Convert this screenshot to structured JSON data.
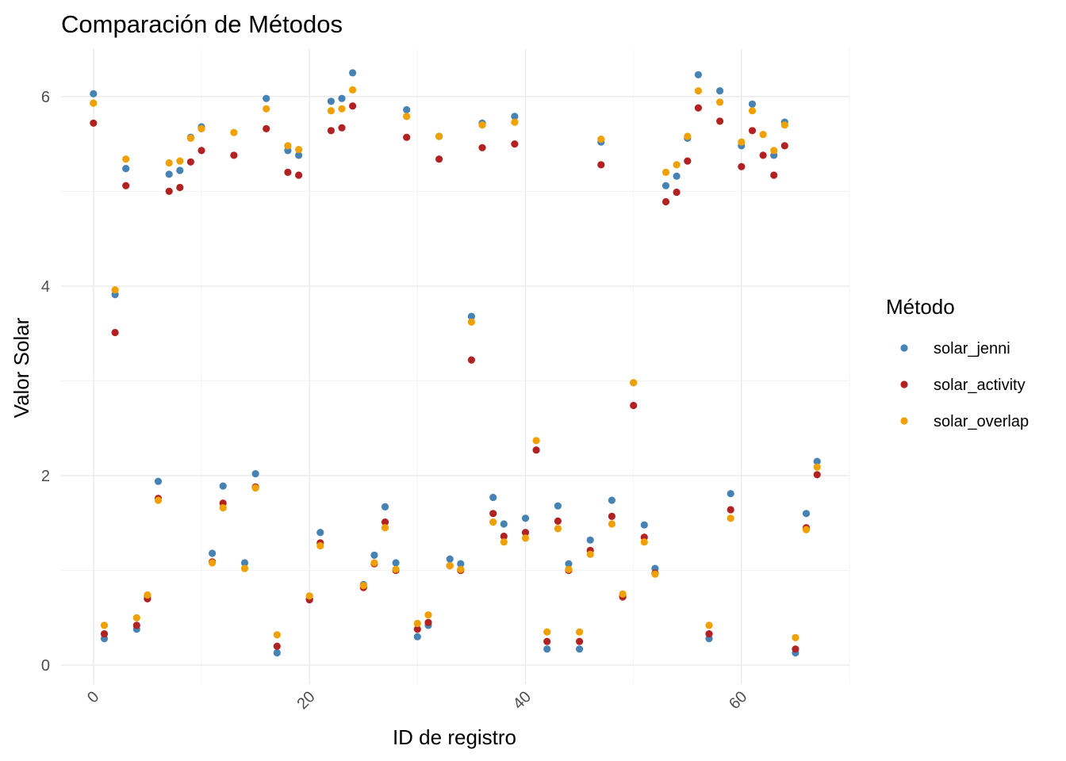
{
  "chart_data": {
    "type": "scatter",
    "title": "Comparación de Métodos",
    "xlabel": "ID de registro",
    "ylabel": "Valor Solar",
    "xlim": [
      -3,
      70
    ],
    "ylim": [
      -0.2,
      6.5
    ],
    "xticks": [
      0,
      20,
      40,
      60
    ],
    "yticks": [
      0,
      2,
      4,
      6
    ],
    "grid": true,
    "legend": {
      "title": "Método",
      "position": "right"
    },
    "colors": {
      "solar_jenni": "#4682b4",
      "solar_activity": "#b22222",
      "solar_overlap": "#f0a000"
    },
    "series": [
      {
        "name": "solar_jenni",
        "points": [
          [
            0,
            6.03
          ],
          [
            1,
            0.28
          ],
          [
            2,
            3.91
          ],
          [
            3,
            5.24
          ],
          [
            4,
            0.38
          ],
          [
            5,
            0.72
          ],
          [
            6,
            1.94
          ],
          [
            7,
            5.18
          ],
          [
            8,
            5.22
          ],
          [
            9,
            5.57
          ],
          [
            10,
            5.68
          ],
          [
            11,
            1.18
          ],
          [
            12,
            1.89
          ],
          [
            14,
            1.08
          ],
          [
            15,
            2.02
          ],
          [
            16,
            5.98
          ],
          [
            17,
            0.13
          ],
          [
            18,
            5.43
          ],
          [
            19,
            5.38
          ],
          [
            20,
            0.7
          ],
          [
            21,
            1.4
          ],
          [
            22,
            5.95
          ],
          [
            23,
            5.98
          ],
          [
            24,
            6.25
          ],
          [
            25,
            0.85
          ],
          [
            26,
            1.16
          ],
          [
            27,
            1.67
          ],
          [
            28,
            1.08
          ],
          [
            29,
            5.86
          ],
          [
            30,
            0.3
          ],
          [
            31,
            0.42
          ],
          [
            32,
            5.58
          ],
          [
            33,
            1.12
          ],
          [
            34,
            1.07
          ],
          [
            35,
            3.68
          ],
          [
            36,
            5.72
          ],
          [
            37,
            1.77
          ],
          [
            38,
            1.49
          ],
          [
            39,
            5.79
          ],
          [
            40,
            1.55
          ],
          [
            42,
            0.17
          ],
          [
            43,
            1.68
          ],
          [
            44,
            1.07
          ],
          [
            45,
            0.17
          ],
          [
            46,
            1.32
          ],
          [
            47,
            5.52
          ],
          [
            48,
            1.74
          ],
          [
            49,
            0.73
          ],
          [
            50,
            2.98
          ],
          [
            51,
            1.48
          ],
          [
            52,
            1.02
          ],
          [
            53,
            5.06
          ],
          [
            54,
            5.16
          ],
          [
            55,
            5.56
          ],
          [
            56,
            6.23
          ],
          [
            57,
            0.28
          ],
          [
            58,
            6.06
          ],
          [
            59,
            1.81
          ],
          [
            60,
            5.48
          ],
          [
            61,
            5.92
          ],
          [
            63,
            5.38
          ],
          [
            64,
            5.73
          ],
          [
            65,
            0.13
          ],
          [
            66,
            1.6
          ],
          [
            67,
            2.15
          ]
        ]
      },
      {
        "name": "solar_activity",
        "points": [
          [
            0,
            5.72
          ],
          [
            1,
            0.33
          ],
          [
            2,
            3.51
          ],
          [
            3,
            5.06
          ],
          [
            4,
            0.42
          ],
          [
            5,
            0.7
          ],
          [
            6,
            1.76
          ],
          [
            7,
            5.0
          ],
          [
            8,
            5.04
          ],
          [
            9,
            5.31
          ],
          [
            10,
            5.43
          ],
          [
            11,
            1.09
          ],
          [
            12,
            1.71
          ],
          [
            13,
            5.38
          ],
          [
            15,
            1.88
          ],
          [
            16,
            5.66
          ],
          [
            17,
            0.2
          ],
          [
            18,
            5.2
          ],
          [
            19,
            5.17
          ],
          [
            20,
            0.69
          ],
          [
            21,
            1.29
          ],
          [
            22,
            5.64
          ],
          [
            23,
            5.67
          ],
          [
            24,
            5.9
          ],
          [
            25,
            0.82
          ],
          [
            26,
            1.07
          ],
          [
            27,
            1.51
          ],
          [
            28,
            1.0
          ],
          [
            29,
            5.57
          ],
          [
            30,
            0.38
          ],
          [
            31,
            0.45
          ],
          [
            32,
            5.34
          ],
          [
            33,
            1.05
          ],
          [
            34,
            1.0
          ],
          [
            35,
            3.22
          ],
          [
            36,
            5.46
          ],
          [
            37,
            1.6
          ],
          [
            38,
            1.36
          ],
          [
            39,
            5.5
          ],
          [
            40,
            1.4
          ],
          [
            41,
            2.27
          ],
          [
            42,
            0.25
          ],
          [
            43,
            1.52
          ],
          [
            44,
            1.0
          ],
          [
            45,
            0.25
          ],
          [
            46,
            1.21
          ],
          [
            47,
            5.28
          ],
          [
            48,
            1.57
          ],
          [
            49,
            0.72
          ],
          [
            50,
            2.74
          ],
          [
            51,
            1.35
          ],
          [
            52,
            0.97
          ],
          [
            53,
            4.89
          ],
          [
            54,
            4.99
          ],
          [
            55,
            5.32
          ],
          [
            56,
            5.88
          ],
          [
            57,
            0.33
          ],
          [
            58,
            5.74
          ],
          [
            59,
            1.64
          ],
          [
            60,
            5.26
          ],
          [
            61,
            5.64
          ],
          [
            62,
            5.38
          ],
          [
            63,
            5.17
          ],
          [
            64,
            5.48
          ],
          [
            65,
            0.17
          ],
          [
            66,
            1.45
          ],
          [
            67,
            2.01
          ]
        ]
      },
      {
        "name": "solar_overlap",
        "points": [
          [
            0,
            5.93
          ],
          [
            1,
            0.42
          ],
          [
            2,
            3.96
          ],
          [
            3,
            5.34
          ],
          [
            4,
            0.5
          ],
          [
            5,
            0.74
          ],
          [
            6,
            1.74
          ],
          [
            7,
            5.3
          ],
          [
            8,
            5.32
          ],
          [
            9,
            5.56
          ],
          [
            10,
            5.66
          ],
          [
            11,
            1.08
          ],
          [
            12,
            1.66
          ],
          [
            13,
            5.62
          ],
          [
            14,
            1.02
          ],
          [
            15,
            1.87
          ],
          [
            16,
            5.87
          ],
          [
            17,
            0.32
          ],
          [
            18,
            5.48
          ],
          [
            19,
            5.44
          ],
          [
            20,
            0.73
          ],
          [
            21,
            1.26
          ],
          [
            22,
            5.85
          ],
          [
            23,
            5.87
          ],
          [
            24,
            6.07
          ],
          [
            25,
            0.84
          ],
          [
            26,
            1.08
          ],
          [
            27,
            1.45
          ],
          [
            28,
            1.01
          ],
          [
            29,
            5.79
          ],
          [
            30,
            0.44
          ],
          [
            31,
            0.53
          ],
          [
            32,
            5.58
          ],
          [
            33,
            1.05
          ],
          [
            34,
            1.01
          ],
          [
            35,
            3.62
          ],
          [
            36,
            5.7
          ],
          [
            37,
            1.51
          ],
          [
            38,
            1.3
          ],
          [
            39,
            5.73
          ],
          [
            40,
            1.34
          ],
          [
            41,
            2.37
          ],
          [
            42,
            0.35
          ],
          [
            43,
            1.44
          ],
          [
            44,
            1.01
          ],
          [
            45,
            0.35
          ],
          [
            46,
            1.17
          ],
          [
            47,
            5.55
          ],
          [
            48,
            1.49
          ],
          [
            49,
            0.75
          ],
          [
            50,
            2.98
          ],
          [
            51,
            1.3
          ],
          [
            52,
            0.96
          ],
          [
            53,
            5.2
          ],
          [
            54,
            5.28
          ],
          [
            55,
            5.58
          ],
          [
            56,
            6.06
          ],
          [
            57,
            0.42
          ],
          [
            58,
            5.94
          ],
          [
            59,
            1.55
          ],
          [
            60,
            5.52
          ],
          [
            61,
            5.85
          ],
          [
            62,
            5.6
          ],
          [
            63,
            5.43
          ],
          [
            64,
            5.7
          ],
          [
            65,
            0.29
          ],
          [
            66,
            1.43
          ],
          [
            67,
            2.09
          ]
        ]
      }
    ]
  }
}
